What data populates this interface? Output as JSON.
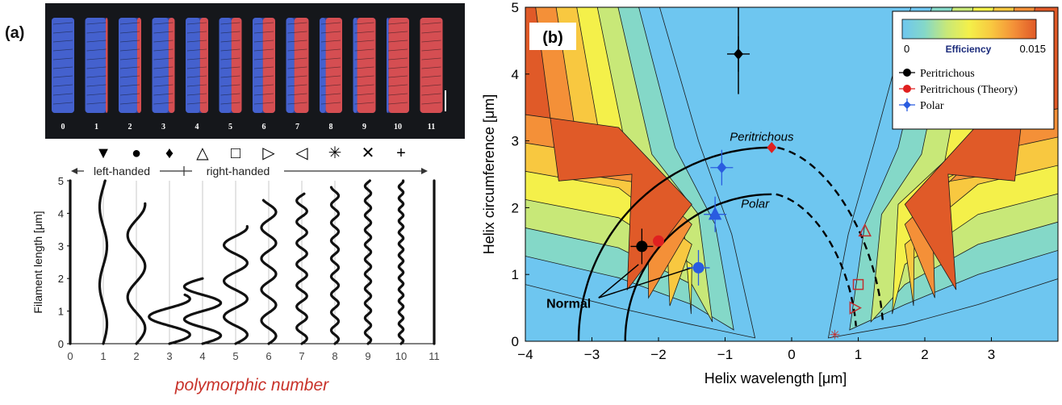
{
  "panel_a": {
    "label": "(a)",
    "photo_numbers": [
      "0",
      "1",
      "2",
      "3",
      "4",
      "5",
      "6",
      "7",
      "8",
      "9",
      "10",
      "11"
    ],
    "handedness": {
      "left": "left-handed",
      "right": "right-handed"
    },
    "symbols": [
      "▼",
      "●",
      "♦",
      "△",
      "□",
      "▷",
      "◁",
      "✳",
      "✕",
      "+"
    ],
    "ylabel": "Filament length [μm]",
    "xlabel": "polymorphic number",
    "y_ticks": [
      "0",
      "1",
      "2",
      "3",
      "4",
      "5"
    ],
    "x_ticks": [
      "0",
      "1",
      "2",
      "3",
      "4",
      "5",
      "6",
      "7",
      "8",
      "9",
      "10",
      "11"
    ],
    "colors": {
      "photo_blue": "#3b57c8",
      "photo_red": "#e04848",
      "xlabel": "#c8322a"
    }
  },
  "panel_b": {
    "label": "(b)",
    "xlabel": "Helix wavelength [μm]",
    "ylabel": "Helix circumference [μm]",
    "x_ticks": [
      "−4",
      "−3",
      "−2",
      "−1",
      "0",
      "1",
      "2",
      "3"
    ],
    "y_ticks": [
      "0",
      "1",
      "2",
      "3",
      "4",
      "5"
    ],
    "colorbar": {
      "title": "Efficiency",
      "min": "0",
      "max": "0.015"
    },
    "legend": [
      "Peritrichous",
      "Peritrichous (Theory)",
      "Polar"
    ],
    "annotations": {
      "peritrichous": "Peritrichous",
      "polar": "Polar",
      "normal": "Normal"
    }
  },
  "chart_data": [
    {
      "type": "line",
      "title": "",
      "xlabel": "polymorphic number",
      "ylabel": "Filament length [μm]",
      "xlim": [
        0,
        11
      ],
      "ylim": [
        0,
        5
      ],
      "note": "Schematic waveforms of flagellar filaments for polymorphic states 0-11",
      "series": [
        {
          "polymorph": 0,
          "pitch": 0,
          "amplitude": 0,
          "length": 5
        },
        {
          "polymorph": 1,
          "pitch": 2.4,
          "amplitude": 0.05,
          "length": 5
        },
        {
          "polymorph": 2,
          "pitch": 1.9,
          "amplitude": 0.12,
          "length": 4.3
        },
        {
          "polymorph": 3,
          "pitch": 1.1,
          "amplitude": 0.28,
          "length": 1.5
        },
        {
          "polymorph": 4,
          "pitch": 1.0,
          "amplitude": 0.25,
          "length": 2.0
        },
        {
          "polymorph": 5,
          "pitch": 1.1,
          "amplitude": 0.16,
          "length": 3.6
        },
        {
          "polymorph": 6,
          "pitch": 0.95,
          "amplitude": 0.1,
          "length": 4.4
        },
        {
          "polymorph": 7,
          "pitch": 0.65,
          "amplitude": 0.07,
          "length": 4.6
        },
        {
          "polymorph": 8,
          "pitch": 0.55,
          "amplitude": 0.05,
          "length": 4.8
        },
        {
          "polymorph": 9,
          "pitch": 0.45,
          "amplitude": 0.04,
          "length": 5
        },
        {
          "polymorph": 10,
          "pitch": 0.35,
          "amplitude": 0.03,
          "length": 5
        },
        {
          "polymorph": 11,
          "pitch": 0,
          "amplitude": 0,
          "length": 5
        }
      ]
    },
    {
      "type": "heatmap",
      "title": "",
      "xlabel": "Helix wavelength [μm]",
      "ylabel": "Helix circumference [μm]",
      "xlim": [
        -4,
        4
      ],
      "ylim": [
        0,
        5
      ],
      "colorbar_range": [
        0,
        0.015
      ],
      "colormap": [
        "#6ec6f0",
        "#84d8c8",
        "#c8e878",
        "#f4f04a",
        "#f8c840",
        "#f49038",
        "#e05a28"
      ],
      "series": [
        {
          "name": "Peritrichous",
          "type": "scatter",
          "color": "#000000",
          "points": [
            {
              "x": -2.25,
              "y": 1.42,
              "marker": "circle"
            },
            {
              "x": -0.8,
              "y": 4.3,
              "marker": "diamond"
            }
          ]
        },
        {
          "name": "Peritrichous (Theory)",
          "type": "scatter",
          "color": "#e02020",
          "points": [
            {
              "x": -2.0,
              "y": 1.5,
              "marker": "circle"
            },
            {
              "x": -0.3,
              "y": 2.9,
              "marker": "diamond"
            }
          ]
        },
        {
          "name": "Polar",
          "type": "scatter",
          "color": "#2a5ce0",
          "points": [
            {
              "x": -1.4,
              "y": 1.1,
              "marker": "circle"
            },
            {
              "x": -1.15,
              "y": 1.9,
              "marker": "triangle"
            },
            {
              "x": -1.05,
              "y": 2.6,
              "marker": "diamond"
            }
          ]
        },
        {
          "name": "",
          "type": "scatter",
          "color": "#c03030",
          "points": [
            {
              "x": 1.1,
              "y": 1.65,
              "marker": "triangle"
            },
            {
              "x": 1.0,
              "y": 0.85,
              "marker": "square"
            },
            {
              "x": 0.95,
              "y": 0.5,
              "marker": "triangle-right"
            },
            {
              "x": 0.65,
              "y": 0.1,
              "marker": "star"
            }
          ]
        }
      ],
      "curves": [
        {
          "label": "Peritrichous",
          "center_x": -0.3,
          "radius": 2.9
        },
        {
          "label": "Polar",
          "center_x": -0.3,
          "radius": 2.2
        }
      ]
    }
  ]
}
